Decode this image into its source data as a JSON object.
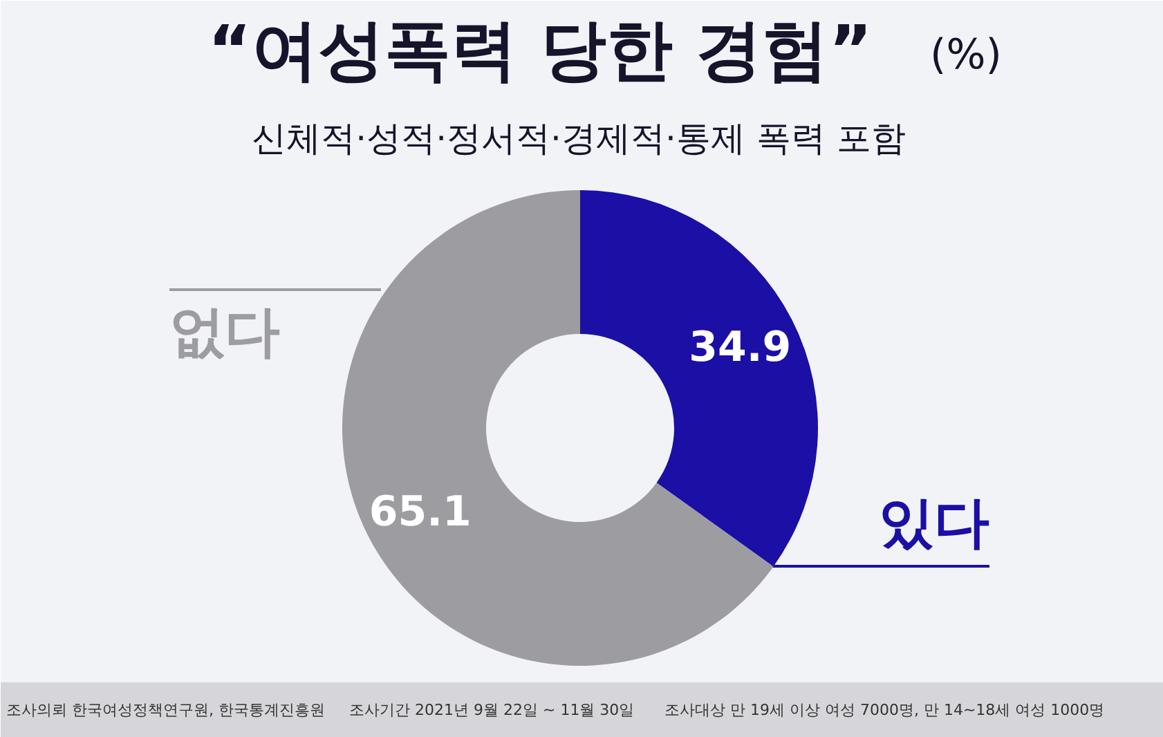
{
  "chart_data": {
    "type": "donut",
    "title": "“여성폭력 당한 경험”",
    "subtitle": "신체적·성적·정서적·경제적·통제 폭력 포함",
    "categories": [
      "있다",
      "없다"
    ],
    "values": [
      34.9,
      65.1
    ],
    "colors": [
      "#1c0fa6",
      "#9c9ca1"
    ],
    "data_labels": true,
    "annotations": [
      "(%)",
      "조사의뢰 한국여성정책연구원, 한국통계진흥원",
      "조사기간 2021년 9월 22일 ~ 11월 30일",
      "조사대상 만 19세 이상 여성 7000명, 만 14~18세 여성 1000명"
    ]
  }
}
